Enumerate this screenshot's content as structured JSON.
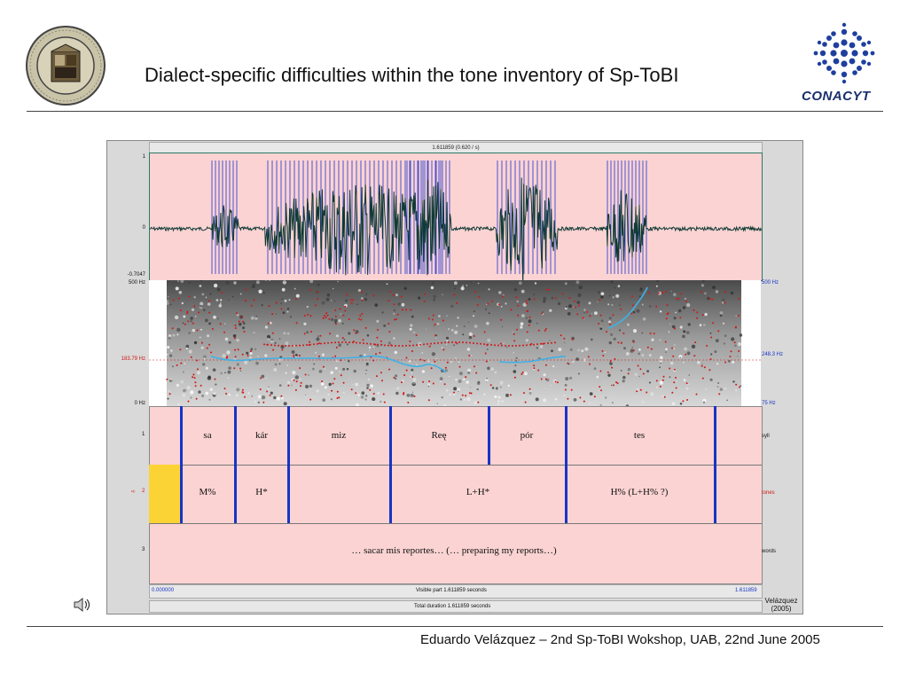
{
  "header": {
    "title": "Dialect-specific difficulties within the tone inventory of Sp-ToBI",
    "logo_right_text": "CONACYT"
  },
  "footer": {
    "text": "Eduardo Velázquez – 2nd Sp-ToBI Wokshop, UAB, 22nd June 2005"
  },
  "praat": {
    "cursor_label": "1.611859 (0.620 / s)",
    "waveform": {
      "y_top": "1",
      "y_mid": "0",
      "y_bottom": "-0.7047"
    },
    "spectrogram": {
      "left_top": "500 Hz",
      "left_bottom": "0 Hz",
      "right_top": "500 Hz",
      "right_mid": "248.3 Hz",
      "right_bottom": "75 Hz",
      "pitch_cursor": "183.79 Hz"
    },
    "tiers": [
      {
        "number": "1",
        "name": "syll",
        "intervals": [
          "sa",
          "kár",
          "miz",
          "Reę",
          "pór",
          "tes"
        ]
      },
      {
        "number": "2",
        "name": "tones",
        "intervals": [
          "M%",
          "H*",
          "L+H*",
          "H%  (L+H% ?)"
        ]
      },
      {
        "number": "3",
        "name": "words",
        "intervals": [
          "… sacar mis reportes… (… preparing my reports…)"
        ]
      }
    ],
    "active_tier_marker": "➪",
    "time_start": "0.000000",
    "time_end": "1.611859",
    "visible_part": "Visible part 1.611859 seconds",
    "total_duration": "Total duration 1.611859 seconds"
  },
  "credit": {
    "name": "Velázquez",
    "year": "(2005)"
  },
  "colors": {
    "tier_bg": "#fbd3d3",
    "boundary": "#1834c4",
    "pitch_track": "#3fb1e6",
    "formant_dots": "#d01818",
    "selected_interval": "#fcd335"
  },
  "icons": {
    "speaker": "speaker-icon",
    "seal": "university-seal-logo",
    "conacyt": "conacyt-logo"
  }
}
